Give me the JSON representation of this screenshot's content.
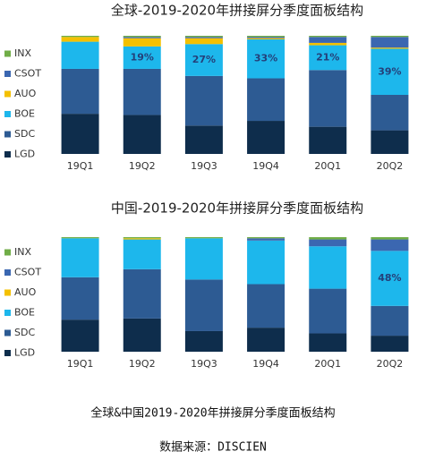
{
  "chart_data": [
    {
      "type": "stacked-bar",
      "title": "全球-2019-2020年拼接屏分季度面板结构",
      "categories": [
        "19Q1",
        "19Q2",
        "19Q3",
        "19Q4",
        "20Q1",
        "20Q2"
      ],
      "ylim": [
        0,
        100
      ],
      "series": [
        {
          "name": "LGD",
          "color": "#0e2d4c",
          "values": [
            34,
            33,
            24,
            28,
            23,
            20
          ]
        },
        {
          "name": "SDC",
          "color": "#2d5b93",
          "values": [
            38,
            39,
            42,
            36,
            48,
            30
          ]
        },
        {
          "name": "BOE",
          "color": "#1db7ec",
          "values": [
            23,
            19,
            27,
            33,
            21,
            39
          ],
          "value_labels": [
            null,
            "19%",
            "27%",
            "33%",
            "21%",
            "39%"
          ]
        },
        {
          "name": "AUO",
          "color": "#f4c000",
          "values": [
            4,
            7,
            5,
            1,
            2,
            1
          ]
        },
        {
          "name": "CSOT",
          "color": "#3b67b1",
          "values": [
            0,
            1,
            1,
            1,
            5,
            9
          ]
        },
        {
          "name": "INX",
          "color": "#70ad47",
          "values": [
            1,
            1,
            1,
            1,
            1,
            1
          ]
        }
      ]
    },
    {
      "type": "stacked-bar",
      "title": "中国-2019-2020年拼接屏分季度面板结构",
      "categories": [
        "19Q1",
        "19Q2",
        "19Q3",
        "19Q4",
        "20Q1",
        "20Q2"
      ],
      "ylim": [
        0,
        100
      ],
      "series": [
        {
          "name": "LGD",
          "color": "#0e2d4c",
          "values": [
            28,
            29,
            18,
            21,
            16,
            14
          ]
        },
        {
          "name": "SDC",
          "color": "#2d5b93",
          "values": [
            37,
            43,
            45,
            38,
            39,
            26
          ]
        },
        {
          "name": "BOE",
          "color": "#1db7ec",
          "values": [
            34,
            26,
            36,
            38,
            37,
            48
          ],
          "value_labels": [
            null,
            null,
            null,
            null,
            null,
            "48%"
          ]
        },
        {
          "name": "AUO",
          "color": "#f4c000",
          "values": [
            0,
            1,
            0,
            0,
            0,
            0
          ]
        },
        {
          "name": "CSOT",
          "color": "#3b67b1",
          "values": [
            0,
            0,
            0,
            2,
            6,
            10
          ]
        },
        {
          "name": "INX",
          "color": "#70ad47",
          "values": [
            1,
            1,
            1,
            1,
            2,
            2
          ]
        }
      ]
    }
  ],
  "caption": "全球&中国2019-2020年拼接屏分季度面板结构",
  "source": "数据来源：DISCIEN"
}
